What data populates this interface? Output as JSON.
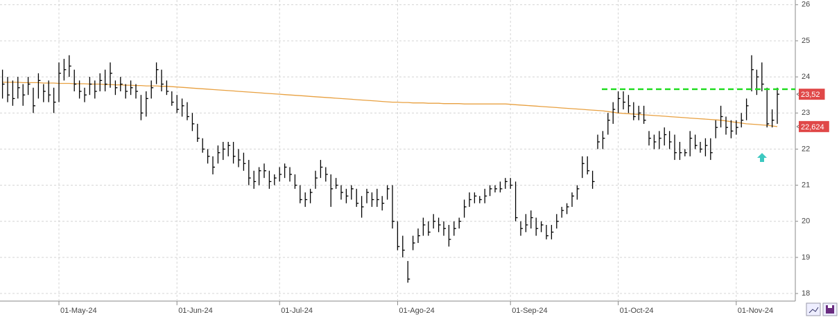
{
  "chart_data": {
    "type": "ohlc",
    "categories": [
      null,
      null,
      null,
      null,
      null,
      null,
      null,
      null,
      null,
      null,
      null,
      "01-May-24",
      null,
      null,
      null,
      null,
      null,
      null,
      null,
      null,
      null,
      null,
      null,
      null,
      null,
      null,
      null,
      null,
      null,
      null,
      null,
      null,
      null,
      null,
      "01-Jun-24",
      null,
      null,
      null,
      null,
      null,
      null,
      null,
      null,
      null,
      null,
      null,
      null,
      null,
      null,
      null,
      null,
      null,
      null,
      null,
      "01-Jul-24",
      null,
      null,
      null,
      null,
      null,
      null,
      null,
      null,
      null,
      null,
      null,
      null,
      null,
      null,
      null,
      null,
      null,
      null,
      null,
      null,
      null,
      null,
      "01-Ago-24",
      null,
      null,
      null,
      null,
      null,
      null,
      null,
      null,
      null,
      null,
      null,
      null,
      null,
      null,
      null,
      null,
      null,
      null,
      null,
      null,
      null,
      "01-Sep-24",
      null,
      null,
      null,
      null,
      null,
      null,
      null,
      null,
      null,
      null,
      null,
      null,
      null,
      null,
      null,
      null,
      null,
      null,
      null,
      null,
      "01-Oct-24",
      null,
      null,
      null,
      null,
      null,
      null,
      null,
      null,
      null,
      null,
      null,
      null,
      null,
      null,
      null,
      null,
      null,
      null,
      null,
      null,
      null,
      null,
      "01-Nov-24",
      null,
      null,
      null,
      null,
      null,
      null,
      null,
      null
    ],
    "high": [
      24.2,
      24.0,
      23.9,
      24.0,
      23.8,
      24.0,
      23.7,
      24.1,
      23.8,
      23.9,
      23.7,
      24.4,
      24.5,
      24.6,
      24.2,
      23.9,
      23.7,
      24.0,
      23.9,
      24.1,
      24.2,
      24.4,
      23.9,
      24.0,
      23.8,
      23.9,
      23.8,
      23.5,
      23.6,
      23.9,
      24.4,
      24.2,
      23.9,
      23.6,
      23.5,
      23.4,
      23.3,
      23.0,
      22.7,
      22.3,
      22.0,
      21.8,
      22.1,
      22.2,
      22.2,
      22.2,
      22.0,
      21.9,
      21.7,
      21.4,
      21.5,
      21.6,
      21.4,
      21.3,
      21.5,
      21.6,
      21.5,
      21.3,
      21.0,
      20.8,
      20.9,
      21.4,
      21.7,
      21.5,
      21.3,
      21.2,
      21.0,
      20.9,
      21.0,
      20.9,
      20.7,
      20.9,
      20.8,
      20.9,
      20.7,
      21.0,
      21.0,
      20.0,
      19.6,
      18.9,
      19.6,
      19.8,
      20.1,
      20.0,
      20.2,
      20.1,
      20.0,
      19.9,
      20.0,
      20.1,
      20.6,
      20.8,
      20.8,
      20.7,
      20.9,
      21.0,
      21.0,
      21.1,
      21.2,
      21.2,
      21.1,
      20.0,
      20.2,
      20.3,
      20.1,
      20.0,
      19.9,
      19.9,
      20.2,
      20.4,
      20.5,
      20.8,
      21.0,
      21.8,
      21.8,
      21.4,
      22.4,
      22.5,
      23.0,
      23.3,
      23.6,
      23.6,
      23.5,
      23.3,
      23.2,
      23.2,
      22.5,
      22.4,
      22.5,
      22.6,
      22.5,
      22.4,
      22.2,
      22.0,
      22.5,
      22.4,
      22.2,
      22.3,
      22.3,
      22.8,
      23.2,
      22.9,
      22.8,
      22.8,
      23.0,
      23.4,
      24.6,
      24.2,
      24.4,
      23.7,
      23.1,
      23.7
    ],
    "low": [
      23.4,
      23.3,
      23.2,
      23.4,
      23.2,
      23.5,
      23.0,
      23.4,
      23.3,
      23.3,
      23.0,
      23.3,
      23.9,
      24.0,
      23.6,
      23.4,
      23.3,
      23.5,
      23.4,
      23.6,
      23.6,
      23.7,
      23.5,
      23.6,
      23.4,
      23.5,
      23.4,
      22.8,
      22.9,
      23.4,
      23.8,
      23.6,
      23.5,
      23.2,
      23.0,
      22.9,
      22.8,
      22.5,
      22.2,
      21.9,
      21.6,
      21.3,
      21.6,
      21.7,
      21.8,
      21.6,
      21.5,
      21.4,
      21.0,
      20.9,
      21.0,
      21.2,
      20.9,
      21.0,
      21.1,
      21.2,
      21.1,
      20.9,
      20.5,
      20.4,
      20.5,
      20.9,
      21.2,
      21.1,
      20.4,
      20.9,
      20.6,
      20.5,
      20.6,
      20.4,
      20.1,
      20.5,
      20.4,
      20.4,
      20.3,
      20.6,
      19.8,
      19.2,
      19.0,
      18.3,
      19.2,
      19.4,
      19.6,
      19.6,
      19.8,
      19.7,
      19.6,
      19.3,
      19.6,
      19.8,
      20.1,
      20.4,
      20.5,
      20.5,
      20.5,
      20.7,
      20.8,
      20.8,
      20.9,
      20.9,
      20.0,
      19.6,
      19.7,
      19.8,
      19.6,
      19.7,
      19.5,
      19.5,
      19.8,
      20.1,
      20.2,
      20.4,
      20.6,
      21.2,
      21.3,
      20.9,
      22.0,
      22.0,
      22.4,
      22.7,
      23.0,
      23.1,
      23.0,
      22.8,
      22.8,
      22.7,
      22.1,
      22.0,
      22.0,
      22.1,
      22.0,
      21.7,
      21.7,
      21.8,
      21.8,
      22.0,
      21.9,
      21.8,
      21.7,
      22.3,
      22.6,
      22.4,
      22.3,
      22.4,
      22.6,
      22.8,
      23.6,
      23.5,
      23.6,
      22.6,
      22.6,
      22.7
    ],
    "close": [
      23.8,
      23.5,
      23.4,
      23.7,
      23.5,
      23.8,
      23.2,
      23.9,
      23.6,
      23.5,
      23.3,
      24.1,
      24.2,
      24.3,
      23.8,
      23.6,
      23.5,
      23.8,
      23.6,
      23.9,
      23.8,
      24.1,
      23.7,
      23.8,
      23.6,
      23.7,
      23.6,
      23.0,
      23.4,
      23.7,
      24.2,
      23.8,
      23.6,
      23.3,
      23.1,
      23.2,
      22.9,
      22.7,
      22.3,
      22.0,
      21.8,
      21.5,
      21.9,
      22.0,
      22.1,
      21.8,
      21.7,
      21.6,
      21.2,
      21.1,
      21.4,
      21.4,
      21.1,
      21.2,
      21.3,
      21.5,
      21.3,
      21.0,
      20.6,
      20.6,
      20.8,
      21.2,
      21.5,
      21.3,
      20.9,
      21.0,
      20.8,
      20.7,
      20.9,
      20.5,
      20.4,
      20.8,
      20.6,
      20.6,
      20.5,
      20.9,
      20.0,
      19.3,
      19.2,
      18.4,
      19.4,
      19.6,
      19.9,
      19.7,
      20.0,
      19.9,
      19.8,
      19.5,
      19.8,
      20.0,
      20.4,
      20.6,
      20.7,
      20.6,
      20.7,
      20.9,
      20.9,
      20.9,
      21.1,
      21.0,
      20.1,
      19.8,
      19.9,
      20.1,
      19.8,
      19.9,
      19.6,
      19.7,
      20.0,
      20.3,
      20.4,
      20.7,
      20.9,
      21.6,
      21.4,
      21.1,
      22.2,
      22.3,
      22.8,
      23.1,
      23.4,
      23.3,
      23.2,
      22.9,
      23.0,
      22.8,
      22.3,
      22.2,
      22.3,
      22.4,
      22.2,
      21.9,
      21.9,
      21.9,
      22.3,
      22.1,
      22.0,
      22.1,
      21.9,
      22.6,
      22.9,
      22.6,
      22.5,
      22.6,
      22.8,
      23.2,
      24.2,
      24.0,
      23.8,
      22.7,
      22.8,
      23.52
    ],
    "color": "#000000",
    "moving_average": {
      "color": "#e8a040",
      "values": [
        23.85,
        23.85,
        23.85,
        23.85,
        23.84,
        23.84,
        23.84,
        23.84,
        23.83,
        23.83,
        23.83,
        23.82,
        23.82,
        23.82,
        23.81,
        23.81,
        23.81,
        23.8,
        23.8,
        23.8,
        23.79,
        23.79,
        23.78,
        23.78,
        23.77,
        23.77,
        23.76,
        23.76,
        23.75,
        23.75,
        23.75,
        23.74,
        23.74,
        23.73,
        23.72,
        23.71,
        23.7,
        23.69,
        23.68,
        23.67,
        23.66,
        23.65,
        23.64,
        23.63,
        23.62,
        23.61,
        23.6,
        23.59,
        23.58,
        23.57,
        23.56,
        23.55,
        23.54,
        23.53,
        23.52,
        23.51,
        23.5,
        23.49,
        23.48,
        23.47,
        23.46,
        23.45,
        23.44,
        23.43,
        23.42,
        23.41,
        23.4,
        23.39,
        23.38,
        23.37,
        23.36,
        23.35,
        23.34,
        23.33,
        23.32,
        23.31,
        23.3,
        23.3,
        23.29,
        23.29,
        23.28,
        23.28,
        23.28,
        23.27,
        23.27,
        23.27,
        23.26,
        23.26,
        23.26,
        23.26,
        23.25,
        23.25,
        23.25,
        23.25,
        23.25,
        23.25,
        23.25,
        23.25,
        23.25,
        23.24,
        23.23,
        23.22,
        23.21,
        23.2,
        23.19,
        23.18,
        23.17,
        23.16,
        23.15,
        23.14,
        23.13,
        23.12,
        23.11,
        23.1,
        23.09,
        23.08,
        23.07,
        23.06,
        23.04,
        23.02,
        23.0,
        22.99,
        22.98,
        22.97,
        22.96,
        22.95,
        22.94,
        22.93,
        22.92,
        22.91,
        22.9,
        22.89,
        22.88,
        22.87,
        22.86,
        22.85,
        22.84,
        22.83,
        22.82,
        22.81,
        22.8,
        22.78,
        22.76,
        22.74,
        22.72,
        22.7,
        22.69,
        22.68,
        22.67,
        22.66,
        22.64,
        22.624
      ]
    },
    "resistance": {
      "value": 23.66,
      "color": "#22dd22"
    },
    "markers": [
      {
        "value": 23.52,
        "label": "23,52",
        "color": "#e04848"
      },
      {
        "value": 22.624,
        "label": "22,624",
        "color": "#e04848"
      }
    ],
    "ylim": [
      17.79,
      26.13
    ],
    "yticks": [
      18,
      19,
      20,
      21,
      22,
      23,
      24,
      25,
      26
    ],
    "grid": true
  }
}
